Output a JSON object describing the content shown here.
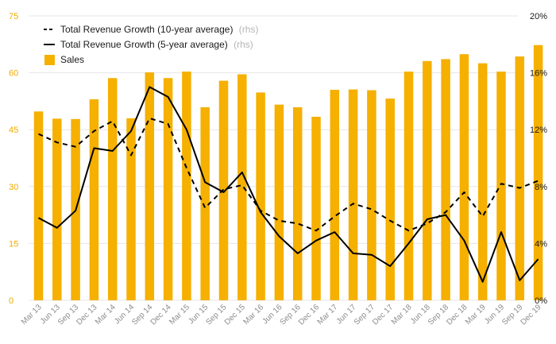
{
  "chart_data": {
    "type": "bar",
    "categories": [
      "Mar 13",
      "Jun 13",
      "Sep 13",
      "Dec 13",
      "Mar 14",
      "Jun 14",
      "Sep 14",
      "Dec 14",
      "Mar 15",
      "Jun 15",
      "Sep 15",
      "Dec 15",
      "Mar 16",
      "Jun 16",
      "Sep 16",
      "Dec 16",
      "Mar 17",
      "Jun 17",
      "Sep 17",
      "Dec 17",
      "Mar 18",
      "Jun 18",
      "Sep 18",
      "Dec 18",
      "Mar 19",
      "Jun 19",
      "Sep 19",
      "Dec 19"
    ],
    "series": [
      {
        "name": "Sales",
        "type": "bar",
        "axis": "left",
        "color": "#F5B000",
        "values": [
          49.8,
          47.9,
          47.8,
          53.0,
          58.6,
          48.0,
          60.1,
          58.6,
          60.3,
          50.9,
          57.9,
          59.6,
          54.8,
          51.6,
          50.9,
          48.4,
          55.5,
          55.6,
          55.4,
          53.2,
          60.3,
          63.1,
          63.6,
          64.9,
          62.5,
          60.3,
          64.3,
          67.3
        ]
      },
      {
        "name": "Total Revenue Growth (10-year average)",
        "type": "line",
        "axis": "right",
        "dash": true,
        "color": "#000000",
        "values": [
          11.7,
          11.1,
          10.8,
          11.9,
          12.6,
          10.2,
          12.8,
          12.4,
          9.3,
          6.5,
          7.8,
          8.1,
          6.3,
          5.6,
          5.4,
          4.9,
          5.9,
          6.8,
          6.4,
          5.6,
          4.9,
          5.4,
          6.2,
          7.6,
          5.9,
          8.2,
          7.9,
          8.4
        ]
      },
      {
        "name": "Total Revenue Growth (5-year average)",
        "type": "line",
        "axis": "right",
        "dash": false,
        "color": "#000000",
        "values": [
          5.8,
          5.1,
          6.3,
          10.7,
          10.5,
          11.9,
          15.0,
          14.3,
          12.0,
          8.3,
          7.6,
          9.0,
          6.2,
          4.5,
          3.3,
          4.2,
          4.8,
          3.3,
          3.2,
          2.4,
          4.0,
          5.7,
          6.0,
          4.2,
          1.3,
          4.8,
          1.4,
          2.9
        ]
      }
    ],
    "y_left": {
      "lim": [
        0,
        75
      ],
      "ticks": [
        "0",
        "15",
        "30",
        "45",
        "60",
        "75"
      ],
      "color": "#F0AC00"
    },
    "y_right": {
      "lim": [
        0,
        20
      ],
      "ticks": [
        "0%",
        "4%",
        "8%",
        "12%",
        "16%",
        "20%"
      ]
    },
    "grid": true,
    "legend": {
      "position": "top-left",
      "entries": [
        {
          "label": "Total Revenue Growth (10-year average)",
          "suffix": "(rhs)",
          "marker": "dashed-line"
        },
        {
          "label": "Total Revenue Growth (5-year average)",
          "suffix": "(rhs)",
          "marker": "solid-line"
        },
        {
          "label": "Sales",
          "suffix": "",
          "marker": "box"
        }
      ]
    }
  }
}
